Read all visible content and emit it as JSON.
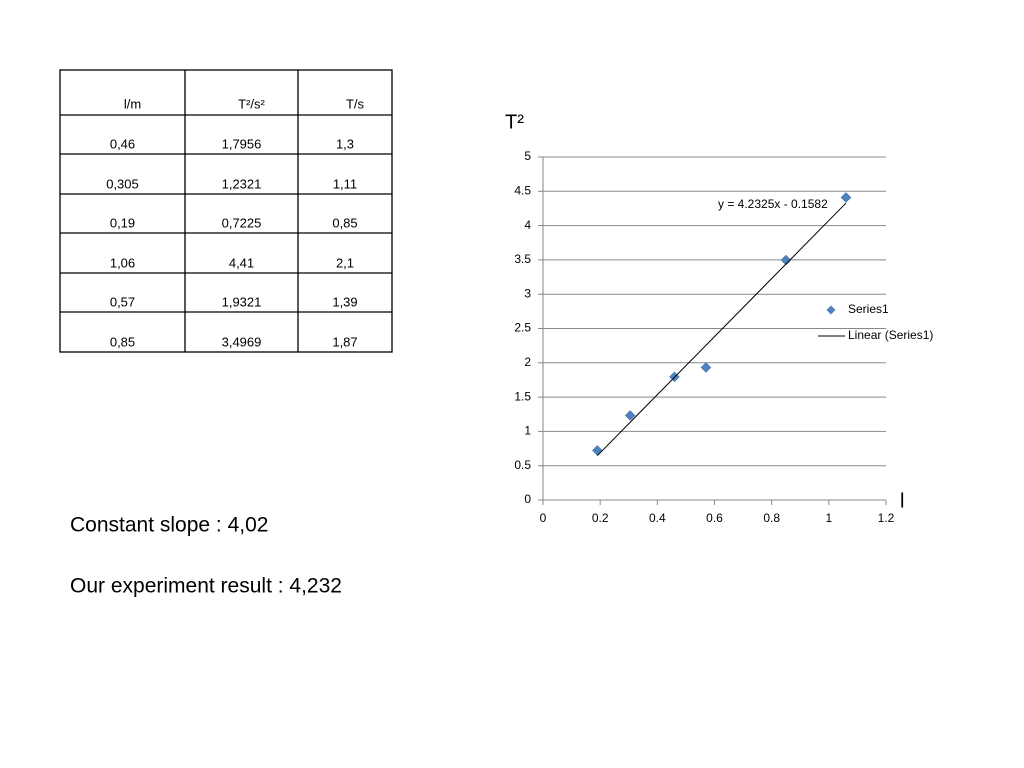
{
  "table": {
    "header": [
      "l/m",
      "T²/s²",
      "T/s"
    ],
    "rows": [
      [
        "0,46",
        "1,7956",
        "1,3"
      ],
      [
        "0,305",
        "1,2321",
        "1,11"
      ],
      [
        "0,19",
        "0,7225",
        "0,85"
      ],
      [
        "1,06",
        "4,41",
        "2,1"
      ],
      [
        "0,57",
        "1,9321",
        "1,39"
      ],
      [
        "0,85",
        "3,4969",
        "1,87"
      ]
    ]
  },
  "chart_data": {
    "type": "scatter",
    "y_label": "T²",
    "x_label": "l",
    "series": [
      {
        "name": "Series1",
        "color": "#4f81bd",
        "x": [
          0.46,
          0.305,
          0.19,
          1.06,
          0.57,
          0.85
        ],
        "values": [
          1.7956,
          1.2321,
          0.7225,
          4.41,
          1.9321,
          3.4969
        ]
      }
    ],
    "trendline": {
      "name": "Linear (Series1)",
      "slope": 4.2325,
      "intercept": -0.1582,
      "label": "y = 4.2325x - 0.1582"
    },
    "xlim": [
      0,
      1.2
    ],
    "xticks": [
      0,
      0.2,
      0.4,
      0.6,
      0.8,
      1,
      1.2
    ],
    "ylim": [
      0,
      5
    ],
    "yticks": [
      0,
      0.5,
      1,
      1.5,
      2,
      2.5,
      3,
      3.5,
      4,
      4.5,
      5
    ],
    "grid": true,
    "legend": "right"
  },
  "notes": [
    "Constant slope : 4,02",
    "Our experiment result : 4,232"
  ]
}
